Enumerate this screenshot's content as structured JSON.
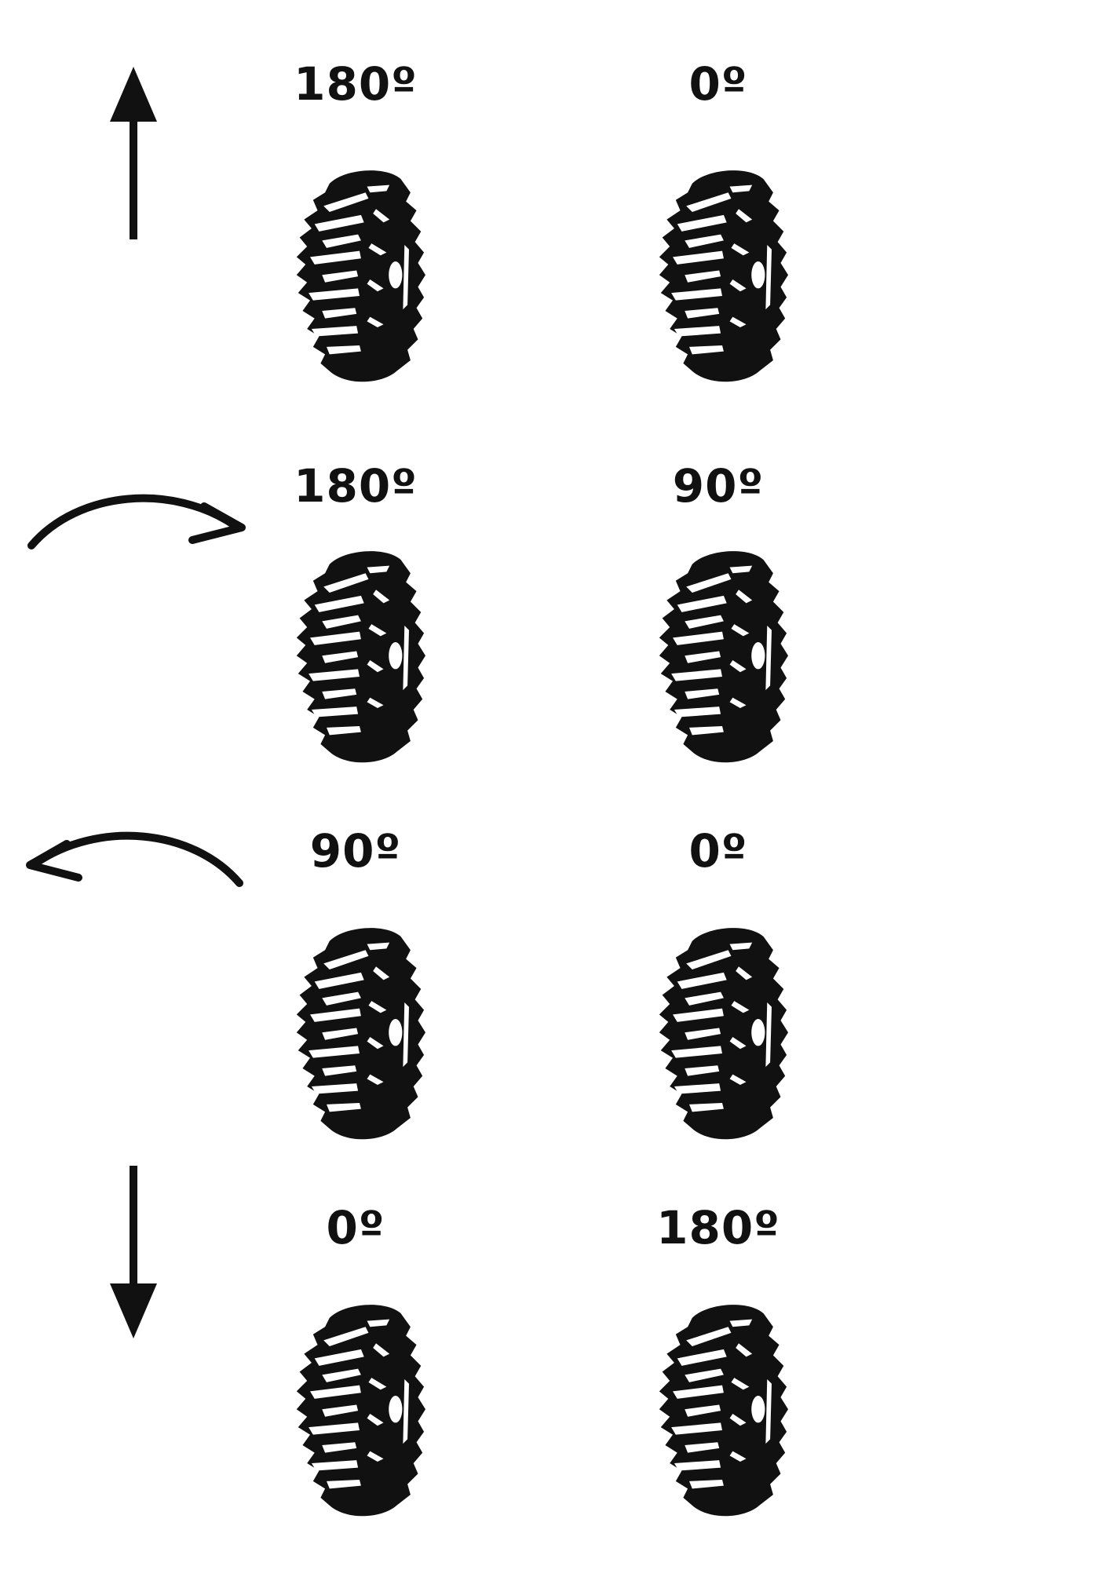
{
  "colors": {
    "ink": "#111111",
    "background": "#ffffff"
  },
  "rows": [
    {
      "arrow": "up-arrow-icon",
      "left_label": "180º",
      "right_label": "0º"
    },
    {
      "arrow": "curved-right-arrow-icon",
      "left_label": "180º",
      "right_label": "90º"
    },
    {
      "arrow": "curved-left-arrow-icon",
      "left_label": "90º",
      "right_label": "0º"
    },
    {
      "arrow": "down-arrow-icon",
      "left_label": "0º",
      "right_label": "180º"
    }
  ]
}
